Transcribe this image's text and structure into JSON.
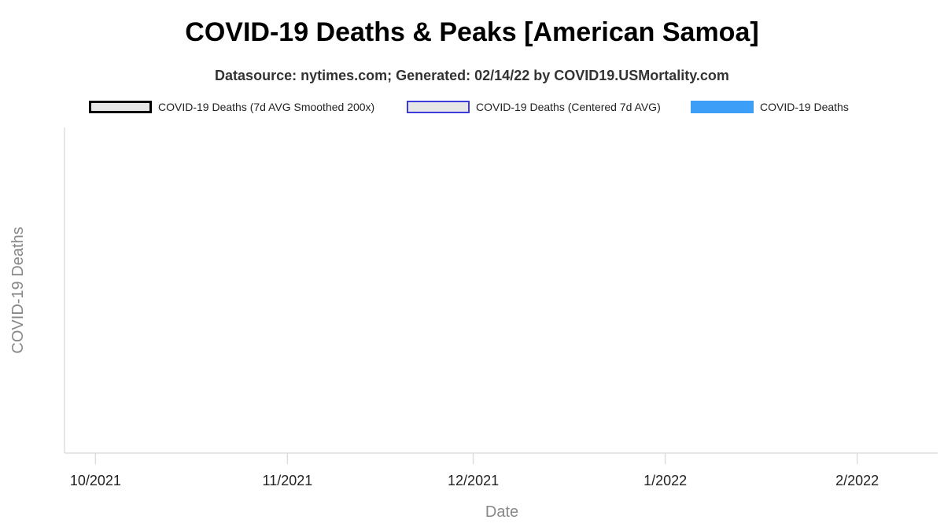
{
  "chart_data": {
    "type": "bar",
    "title": "COVID-19 Deaths & Peaks [American Samoa]",
    "subtitle": "Datasource: nytimes.com; Generated: 02/14/22 by COVID19.USMortality.com",
    "xlabel": "Date",
    "ylabel": "COVID-19 Deaths",
    "x_ticks": [
      "10/2021",
      "11/2021",
      "12/2021",
      "1/2022",
      "2/2022"
    ],
    "x_range": [
      "2021-09-26",
      "2022-02-14"
    ],
    "series": [
      {
        "name": "COVID-19 Deaths (7d AVG Smoothed 200x)",
        "type": "line",
        "values": []
      },
      {
        "name": "COVID-19 Deaths (Centered 7d AVG)",
        "type": "line",
        "values": []
      },
      {
        "name": "COVID-19 Deaths",
        "type": "bar",
        "values": []
      }
    ],
    "legend_position": "top",
    "grid": false
  },
  "colors": {
    "smoothed_fill": "#e6e6e6",
    "smoothed_border": "#000000",
    "centered_fill": "#e6e6e6",
    "centered_border": "#3b3bdb",
    "bars": "#3d9ef7",
    "axis": "#dddddd",
    "axis_label": "#888888",
    "tick_label": "#222222"
  }
}
